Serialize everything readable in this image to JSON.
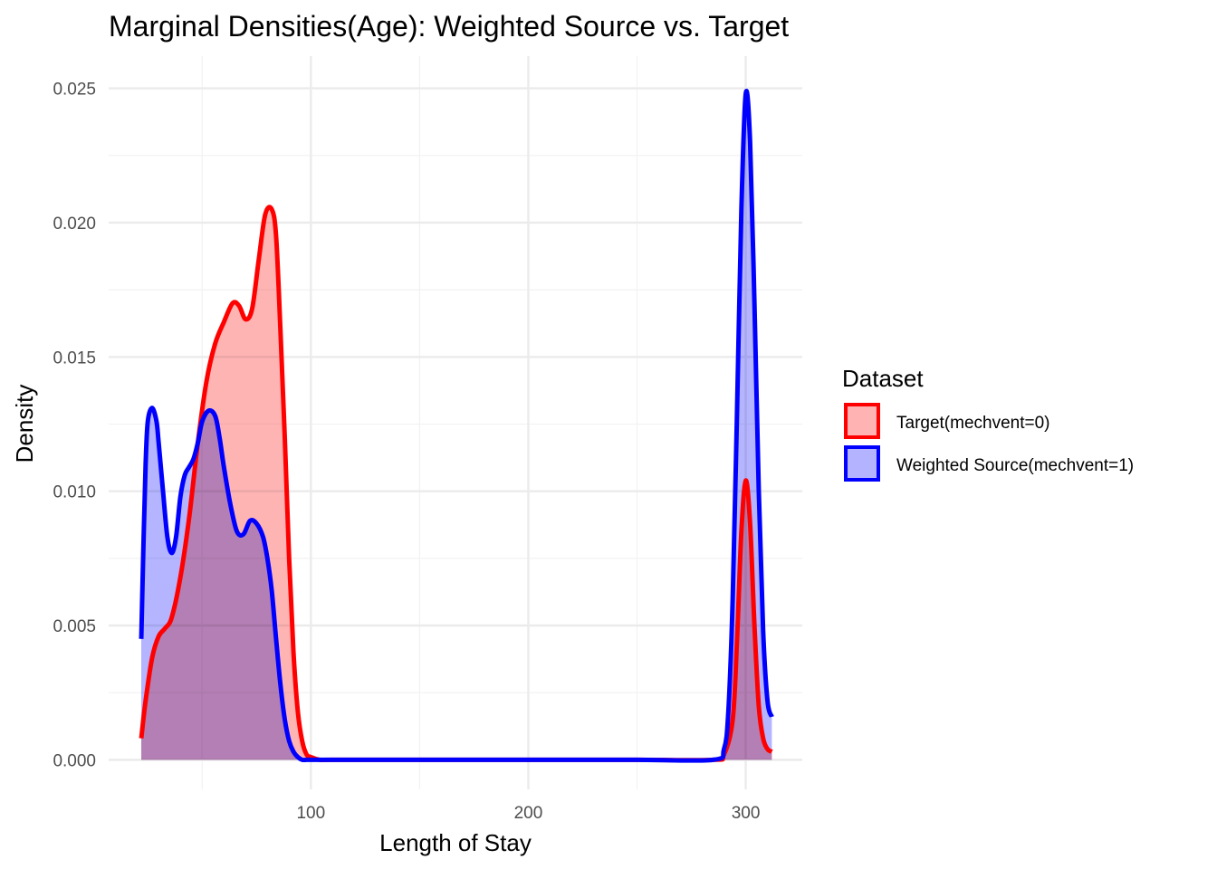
{
  "chart_data": {
    "type": "area",
    "title": "Marginal Densities(Age): Weighted Source vs. Target",
    "xlabel": "Length of Stay",
    "ylabel": "Density",
    "xlim": [
      7,
      326
    ],
    "ylim": [
      -0.0011,
      0.0262
    ],
    "x_ticks": [
      100,
      200,
      300
    ],
    "x_tick_labels": [
      "100",
      "200",
      "300"
    ],
    "y_ticks": [
      0.0,
      0.005,
      0.01,
      0.015,
      0.02,
      0.025
    ],
    "y_tick_labels": [
      "0.000",
      "0.005",
      "0.010",
      "0.015",
      "0.020",
      "0.025"
    ],
    "grid": true,
    "legend": {
      "title": "Dataset",
      "position": "right"
    },
    "series": [
      {
        "name": "Target(mechvent=0)",
        "color": "#ff0000",
        "fill": "#ffb3b3",
        "x": [
          22,
          24,
          27,
          30,
          33,
          36,
          40,
          44,
          48,
          52,
          56,
          60,
          64,
          67,
          70,
          73,
          76,
          79,
          82,
          84,
          86,
          88,
          90,
          92,
          94,
          96,
          98,
          100,
          104,
          110,
          150,
          200,
          250,
          285,
          290,
          294,
          296,
          298,
          300,
          302,
          304,
          306,
          308,
          310,
          312
        ],
        "y": [
          0.0008,
          0.0022,
          0.0038,
          0.0046,
          0.0049,
          0.0053,
          0.0068,
          0.009,
          0.0118,
          0.0141,
          0.0155,
          0.0163,
          0.017,
          0.0169,
          0.0164,
          0.0168,
          0.0186,
          0.0203,
          0.0205,
          0.0195,
          0.016,
          0.012,
          0.0075,
          0.004,
          0.0018,
          0.0007,
          0.0002,
          0.0001,
          0.0,
          0.0,
          0.0,
          0.0,
          0.0,
          0.0,
          0.0002,
          0.0015,
          0.0045,
          0.0085,
          0.0104,
          0.0088,
          0.005,
          0.002,
          0.0008,
          0.0004,
          0.0003
        ]
      },
      {
        "name": "Weighted Source(mechvent=1)",
        "color": "#0000ff",
        "fill": "#b3b3ff",
        "x": [
          22,
          23,
          24,
          25,
          27,
          29,
          30,
          32,
          34,
          36,
          38,
          40,
          42,
          44,
          46,
          48,
          50,
          53,
          56,
          58,
          60,
          63,
          66,
          69,
          72,
          75,
          78,
          80,
          82,
          84,
          86,
          88,
          90,
          92,
          94,
          96,
          98,
          100,
          104,
          110,
          150,
          200,
          250,
          285,
          290,
          292,
          294,
          296,
          298,
          300,
          302,
          304,
          306,
          308,
          310,
          312
        ],
        "y": [
          0.0045,
          0.008,
          0.011,
          0.0126,
          0.0131,
          0.0126,
          0.0118,
          0.01,
          0.0083,
          0.0077,
          0.0083,
          0.0098,
          0.0106,
          0.0109,
          0.0112,
          0.0118,
          0.0126,
          0.013,
          0.0128,
          0.012,
          0.0109,
          0.0095,
          0.0085,
          0.0084,
          0.0089,
          0.0088,
          0.0083,
          0.0075,
          0.0063,
          0.0045,
          0.0028,
          0.0015,
          0.0007,
          0.0003,
          0.0001,
          0.0,
          0.0,
          0.0,
          0.0,
          0.0,
          0.0,
          0.0,
          0.0,
          0.0,
          0.0004,
          0.0018,
          0.006,
          0.013,
          0.0205,
          0.0248,
          0.023,
          0.017,
          0.01,
          0.0048,
          0.0022,
          0.0016
        ]
      }
    ]
  }
}
